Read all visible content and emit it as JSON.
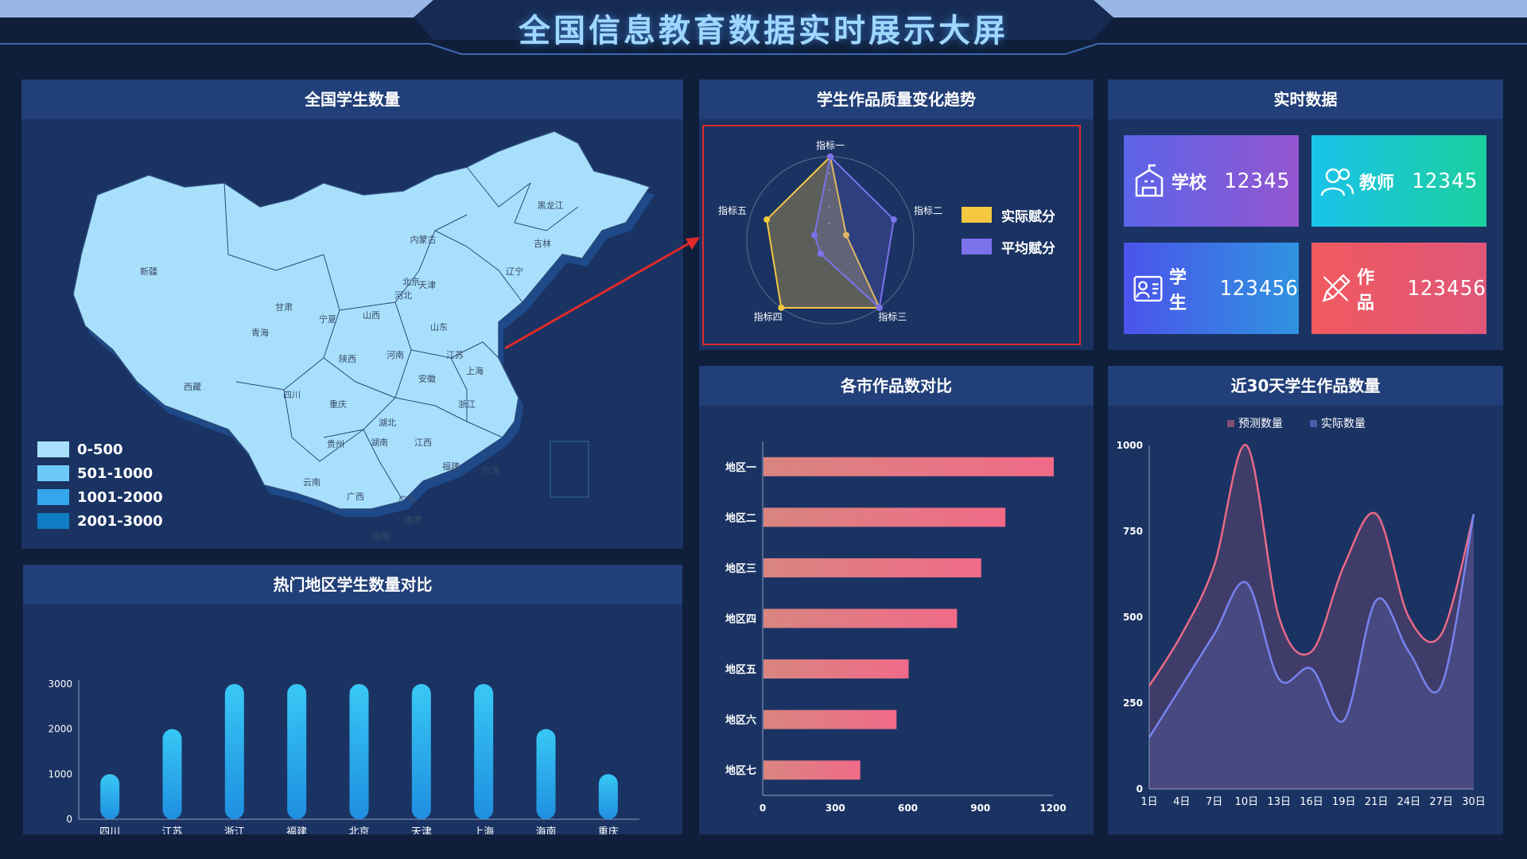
{
  "header": {
    "title": "全国信息教育数据实时展示大屏"
  },
  "panels": {
    "map": {
      "title": "全国学生数量",
      "legend": [
        {
          "label": "0-500",
          "color": "#a8e0fc"
        },
        {
          "label": "501-1000",
          "color": "#6cc9f8"
        },
        {
          "label": "1001-2000",
          "color": "#33a6ec"
        },
        {
          "label": "2001-3000",
          "color": "#0f7cc4"
        }
      ],
      "provinces": [
        "黑龙江",
        "吉林",
        "辽宁",
        "内蒙古",
        "新疆",
        "甘肃",
        "宁夏",
        "山西",
        "河北",
        "北京",
        "天津",
        "山东",
        "青海",
        "陕西",
        "河南",
        "江苏",
        "安徽",
        "西藏",
        "四川",
        "重庆",
        "湖北",
        "上海",
        "浙江",
        "贵州",
        "湖南",
        "江西",
        "福建",
        "云南",
        "广西",
        "广东",
        "台湾",
        "香港",
        "海南"
      ]
    },
    "hot": {
      "title": "热门地区学生数量对比"
    },
    "radar": {
      "title": "学生作品质量变化趋势"
    },
    "city": {
      "title": "各市作品数对比"
    },
    "realtime": {
      "title": "实时数据",
      "cards": [
        {
          "label": "学校",
          "value": "12345",
          "icon": "school-icon",
          "from": "#5b64e8",
          "to": "#9456d0"
        },
        {
          "label": "教师",
          "value": "12345",
          "icon": "teacher-icon",
          "from": "#19c3ea",
          "to": "#1ccf9e"
        },
        {
          "label": "学生",
          "value": "123456",
          "icon": "student-icon",
          "from": "#4b53ea",
          "to": "#2f94e0"
        },
        {
          "label": "作品",
          "value": "123456",
          "icon": "works-icon",
          "from": "#f05a5f",
          "to": "#e0577a"
        }
      ]
    },
    "trend": {
      "title": "近30天学生作品数量"
    }
  },
  "chart_data": [
    {
      "id": "hot",
      "type": "bar",
      "categories": [
        "四川",
        "江苏",
        "浙江",
        "福建",
        "北京",
        "天津",
        "上海",
        "海南",
        "重庆"
      ],
      "values": [
        1000,
        2000,
        3000,
        3000,
        3000,
        3000,
        3000,
        2000,
        1000
      ],
      "ylim": [
        0,
        3000
      ],
      "yticks": [
        0,
        1000,
        2000,
        3000
      ],
      "color_top": "#38c8f5",
      "color_bottom": "#1f8fe0"
    },
    {
      "id": "radar",
      "type": "radar",
      "indicators": [
        "指标一",
        "指标二",
        "指标三",
        "指标四",
        "指标五"
      ],
      "max": 100,
      "series": [
        {
          "name": "实际赋分",
          "color": "#f5c842",
          "values": [
            100,
            20,
            100,
            100,
            80
          ]
        },
        {
          "name": "平均赋分",
          "color": "#7b72ec",
          "values": [
            100,
            80,
            100,
            20,
            20
          ]
        }
      ]
    },
    {
      "id": "city",
      "type": "bar",
      "orientation": "horizontal",
      "categories": [
        "地区一",
        "地区二",
        "地区三",
        "地区四",
        "地区五",
        "地区六",
        "地区七"
      ],
      "values": [
        1200,
        1000,
        900,
        800,
        600,
        550,
        400
      ],
      "xlim": [
        0,
        1200
      ],
      "xticks": [
        0,
        300,
        600,
        900,
        1200
      ],
      "color_from": "#d98580",
      "color_to": "#f06a88"
    },
    {
      "id": "trend",
      "type": "area",
      "x": [
        "1日",
        "4日",
        "7日",
        "10日",
        "13日",
        "16日",
        "19日",
        "21日",
        "24日",
        "27日",
        "30日"
      ],
      "ylim": [
        0,
        1000
      ],
      "yticks": [
        0,
        250,
        500,
        750,
        1000
      ],
      "series": [
        {
          "name": "预测数量",
          "color": "#e86a86",
          "values": [
            300,
            450,
            650,
            1000,
            500,
            400,
            650,
            800,
            500,
            450,
            800
          ]
        },
        {
          "name": "实际数量",
          "color": "#7883f0",
          "values": [
            150,
            300,
            450,
            600,
            320,
            350,
            200,
            550,
            400,
            300,
            800
          ]
        }
      ],
      "legend_position": "top-center"
    }
  ]
}
